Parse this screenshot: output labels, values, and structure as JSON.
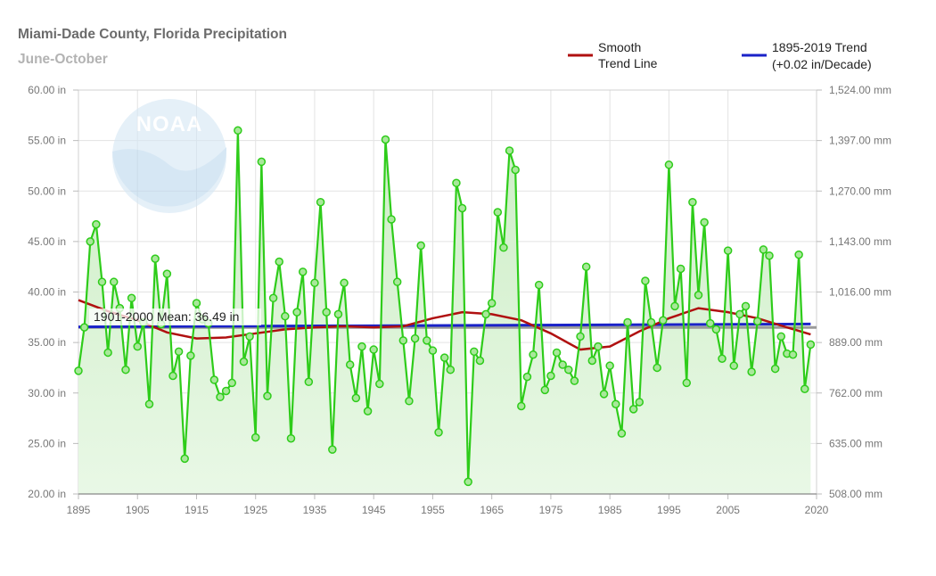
{
  "header": {
    "title": "Miami-Dade County, Florida Precipitation",
    "subtitle": "June-October"
  },
  "legend": {
    "smooth_label_line1": "Smooth",
    "smooth_label_line2": "Trend Line",
    "trend_label_line1": "1895-2019 Trend",
    "trend_label_line2": "(+0.02 in/Decade)"
  },
  "logo_text": "NOAA",
  "mean_label": "1901-2000 Mean: 36.49 in",
  "colors": {
    "series": "#2ecc1a",
    "area_top": "#cdeec6",
    "area_bottom": "#e9f8e6",
    "smooth": "#b01010",
    "trend": "#1a22c8",
    "mean": "#9a9a9a",
    "grid": "#e3e3e3"
  },
  "chart_data": {
    "type": "line",
    "title": "Miami-Dade County, Florida Precipitation",
    "subtitle": "June-October",
    "xlim": [
      1895,
      2020
    ],
    "ylim": [
      20,
      60
    ],
    "grid": true,
    "legend_position": "top-right",
    "x_ticks": [
      1895,
      1905,
      1915,
      1925,
      1935,
      1945,
      1955,
      1965,
      1975,
      1985,
      1995,
      2005,
      2020
    ],
    "y_ticks": [
      20,
      25,
      30,
      35,
      40,
      45,
      50,
      55,
      60
    ],
    "y_tick_labels": [
      "20.00 in",
      "25.00 in",
      "30.00 in",
      "35.00 in",
      "40.00 in",
      "45.00 in",
      "50.00 in",
      "55.00 in",
      "60.00 in"
    ],
    "y2_tick_labels": [
      "508.00 mm",
      "635.00 mm",
      "762.00 mm",
      "889.00 mm",
      "1,016.00 mm",
      "1,143.00 mm",
      "1,270.00 mm",
      "1,397.00 mm",
      "1,524.00 mm"
    ],
    "series": [
      {
        "name": "Precipitation",
        "x": [
          1895,
          1896,
          1897,
          1898,
          1899,
          1900,
          1901,
          1902,
          1903,
          1904,
          1905,
          1906,
          1907,
          1908,
          1909,
          1910,
          1911,
          1912,
          1913,
          1914,
          1915,
          1916,
          1917,
          1918,
          1919,
          1920,
          1921,
          1922,
          1923,
          1924,
          1925,
          1926,
          1927,
          1928,
          1929,
          1930,
          1931,
          1932,
          1933,
          1934,
          1935,
          1936,
          1937,
          1938,
          1939,
          1940,
          1941,
          1942,
          1943,
          1944,
          1945,
          1946,
          1947,
          1948,
          1949,
          1950,
          1951,
          1952,
          1953,
          1954,
          1955,
          1956,
          1957,
          1958,
          1959,
          1960,
          1961,
          1962,
          1963,
          1964,
          1965,
          1966,
          1967,
          1968,
          1969,
          1970,
          1971,
          1972,
          1973,
          1974,
          1975,
          1976,
          1977,
          1978,
          1979,
          1980,
          1981,
          1982,
          1983,
          1984,
          1985,
          1986,
          1987,
          1988,
          1989,
          1990,
          1991,
          1992,
          1993,
          1994,
          1995,
          1996,
          1997,
          1998,
          1999,
          2000,
          2001,
          2002,
          2003,
          2004,
          2005,
          2006,
          2007,
          2008,
          2009,
          2010,
          2011,
          2012,
          2013,
          2014,
          2015,
          2016,
          2017,
          2018,
          2019
        ],
        "values": [
          32.2,
          36.5,
          45.0,
          46.7,
          41.0,
          34.0,
          41.0,
          38.4,
          32.3,
          39.4,
          34.6,
          37.0,
          28.9,
          43.3,
          36.8,
          41.8,
          31.7,
          34.1,
          23.5,
          33.7,
          38.9,
          37.3,
          36.9,
          31.3,
          29.6,
          30.2,
          31.0,
          56.0,
          33.1,
          35.6,
          25.6,
          52.9,
          29.7,
          39.4,
          43.0,
          37.6,
          25.5,
          38.0,
          42.0,
          31.1,
          40.9,
          48.9,
          38.0,
          24.4,
          37.8,
          40.9,
          32.8,
          29.5,
          34.6,
          28.2,
          34.3,
          30.9,
          55.1,
          47.2,
          41.0,
          35.2,
          29.2,
          35.4,
          44.6,
          35.2,
          34.2,
          26.1,
          33.5,
          32.3,
          50.8,
          48.3,
          21.2,
          34.1,
          33.2,
          37.8,
          38.9,
          47.9,
          44.4,
          54.0,
          52.1,
          28.7,
          31.6,
          33.8,
          40.7,
          30.3,
          31.7,
          34.0,
          32.8,
          32.3,
          31.2,
          35.6,
          42.5,
          33.2,
          34.6,
          29.9,
          32.7,
          28.9,
          26.0,
          37.0,
          28.4,
          29.1,
          41.1,
          37.0,
          32.5,
          37.2,
          52.6,
          38.6,
          42.3,
          31.0,
          48.9,
          39.7,
          46.9,
          36.9,
          36.3,
          33.4,
          44.1,
          32.7,
          37.8,
          38.6,
          32.1,
          37.1,
          44.2,
          43.6,
          32.4,
          35.6,
          33.9,
          33.8,
          43.7,
          30.4,
          34.8
        ]
      },
      {
        "name": "Smooth Trend Line",
        "x": [
          1895,
          1900,
          1905,
          1910,
          1915,
          1920,
          1925,
          1930,
          1935,
          1940,
          1945,
          1950,
          1955,
          1960,
          1965,
          1970,
          1975,
          1980,
          1985,
          1990,
          1995,
          2000,
          2005,
          2010,
          2015,
          2019
        ],
        "values": [
          39.2,
          38.1,
          37.2,
          36.0,
          35.4,
          35.5,
          35.9,
          36.3,
          36.5,
          36.6,
          36.5,
          36.6,
          37.4,
          38.0,
          37.8,
          37.2,
          35.9,
          34.3,
          34.6,
          36.1,
          37.4,
          38.4,
          38.0,
          37.4,
          36.5,
          35.8
        ]
      },
      {
        "name": "1895-2019 Trend",
        "x": [
          1895,
          2019
        ],
        "values": [
          36.55,
          36.83
        ]
      },
      {
        "name": "1901-2000 Mean",
        "x": [
          1895,
          2020
        ],
        "values": [
          36.49,
          36.49
        ]
      }
    ]
  }
}
